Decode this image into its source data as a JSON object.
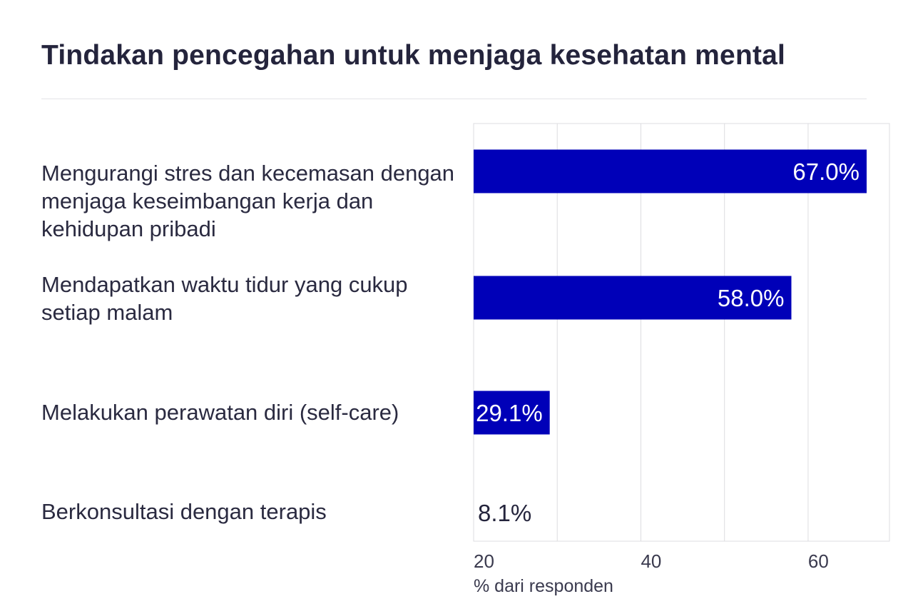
{
  "chart_data": {
    "type": "bar",
    "orientation": "horizontal",
    "title": "Tindakan pencegahan untuk menjaga kesehatan mental",
    "categories": [
      "Mengurangi stres dan kecemasan dengan menjaga keseimbangan kerja dan kehidupan pribadi",
      "Mendapatkan waktu tidur yang cukup setiap malam",
      "Melakukan perawatan diri (self-care)",
      "Berkonsultasi dengan terapis"
    ],
    "values": [
      67.0,
      58.0,
      29.1,
      8.1
    ],
    "value_labels": [
      "67.0%",
      "58.0%",
      "29.1%",
      "8.1%"
    ],
    "xlabel": "% dari responden",
    "ylabel": "",
    "xticks": [
      20,
      40,
      60
    ],
    "xtick_labels": [
      "20",
      "40",
      "60"
    ],
    "xlim": [
      20,
      70
    ],
    "grid": true,
    "colors": {
      "bar": "#0000b8",
      "label_inside": "#ffffff",
      "label_outside": "#24243c",
      "grid": "#dcdce0",
      "text": "#24243c"
    }
  }
}
